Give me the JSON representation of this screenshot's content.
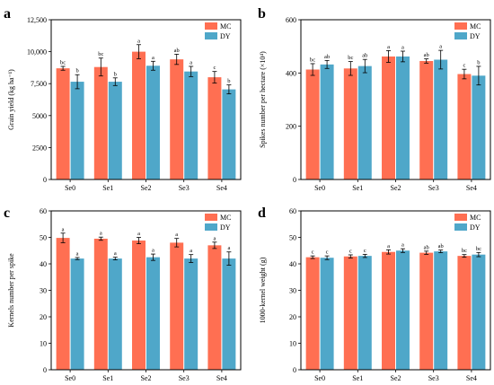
{
  "colors": {
    "MC": "#ff6f52",
    "DY": "#4fa7c9",
    "axis": "#000000"
  },
  "legend": [
    "MC",
    "DY"
  ],
  "chart_data": [
    {
      "panel_label": "a",
      "type": "bar",
      "categories": [
        "Se0",
        "Se1",
        "Se2",
        "Se3",
        "Se4"
      ],
      "ylabel": "Grain yield (kg ha⁻¹)",
      "ylim": [
        0,
        12500
      ],
      "yticks": [
        0,
        2500,
        5000,
        7500,
        10000,
        12500
      ],
      "ytick_labels": [
        "0",
        "2500",
        "5000",
        "7,500",
        "10,000",
        "12,500"
      ],
      "legend_position": "top-right",
      "series": [
        {
          "name": "MC",
          "values": [
            8700,
            8800,
            10000,
            9400,
            8000
          ],
          "errors": [
            150,
            700,
            550,
            400,
            450
          ],
          "letters": [
            "bc",
            "bc",
            "a",
            "ab",
            "c"
          ]
        },
        {
          "name": "DY",
          "values": [
            7650,
            7650,
            8900,
            8450,
            7050
          ],
          "errors": [
            550,
            300,
            350,
            400,
            350
          ],
          "letters": [
            "b",
            "b",
            "a",
            "a",
            "b"
          ]
        }
      ]
    },
    {
      "panel_label": "b",
      "type": "bar",
      "categories": [
        "Se0",
        "Se1",
        "Se2",
        "Se3",
        "Se4"
      ],
      "ylabel": "Spikes number per hectare (×10⁴)",
      "ylim": [
        0,
        600
      ],
      "yticks": [
        0,
        200,
        400,
        600
      ],
      "ytick_labels": [
        "0",
        "200",
        "400",
        "600"
      ],
      "legend_position": "top-right",
      "series": [
        {
          "name": "MC",
          "values": [
            413,
            417,
            462,
            445,
            396
          ],
          "errors": [
            22,
            26,
            22,
            8,
            18
          ],
          "letters": [
            "bc",
            "bc",
            "a",
            "ab",
            "c"
          ]
        },
        {
          "name": "DY",
          "values": [
            432,
            426,
            462,
            450,
            390
          ],
          "errors": [
            15,
            25,
            20,
            35,
            35
          ],
          "letters": [
            "ab",
            "ab",
            "a",
            "a",
            "b"
          ]
        }
      ]
    },
    {
      "panel_label": "c",
      "type": "bar",
      "categories": [
        "Se0",
        "Se1",
        "Se2",
        "Se3",
        "Se4"
      ],
      "ylabel": "Kernels number per spike",
      "ylim": [
        0,
        60
      ],
      "yticks": [
        0,
        10,
        20,
        30,
        40,
        50,
        60
      ],
      "ytick_labels": [
        "0",
        "10",
        "20",
        "30",
        "40",
        "50",
        "60"
      ],
      "legend_position": "top-right",
      "series": [
        {
          "name": "MC",
          "values": [
            49.8,
            49.5,
            48.8,
            48.0,
            47.0
          ],
          "errors": [
            1.8,
            0.6,
            1.2,
            1.6,
            1.2
          ],
          "letters": [
            "a",
            "a",
            "a",
            "a",
            "a"
          ]
        },
        {
          "name": "DY",
          "values": [
            42.0,
            42.0,
            42.5,
            42.0,
            42.0
          ],
          "errors": [
            0.4,
            0.5,
            1.2,
            1.5,
            2.5
          ],
          "letters": [
            "a",
            "a",
            "a",
            "a",
            "a"
          ]
        }
      ]
    },
    {
      "panel_label": "d",
      "type": "bar",
      "categories": [
        "Se0",
        "Se1",
        "Se2",
        "Se3",
        "Se4"
      ],
      "ylabel": "1000-kernel weight (g)",
      "ylim": [
        0,
        60
      ],
      "yticks": [
        0,
        10,
        20,
        30,
        40,
        50,
        60
      ],
      "ytick_labels": [
        "0",
        "10",
        "20",
        "30",
        "40",
        "50",
        "60"
      ],
      "legend_position": "top-right",
      "series": [
        {
          "name": "MC",
          "values": [
            42.5,
            42.8,
            44.5,
            44.2,
            43.0
          ],
          "errors": [
            0.5,
            0.6,
            0.8,
            0.6,
            0.5
          ],
          "letters": [
            "c",
            "c",
            "a",
            "ab",
            "bc"
          ]
        },
        {
          "name": "DY",
          "values": [
            42.3,
            43.0,
            45.0,
            44.7,
            43.5
          ],
          "errors": [
            0.7,
            0.6,
            0.7,
            0.5,
            0.8
          ],
          "letters": [
            "c",
            "c",
            "a",
            "ab",
            "bc"
          ]
        }
      ]
    }
  ]
}
